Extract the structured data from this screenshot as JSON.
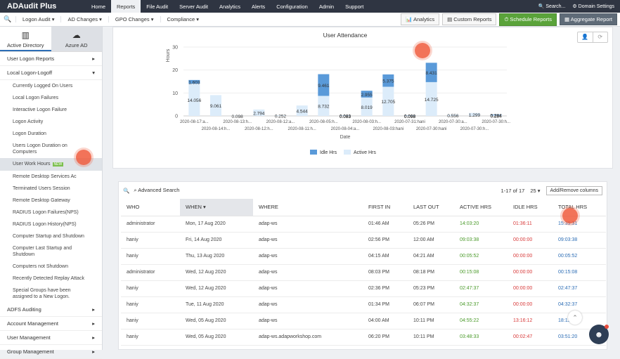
{
  "app": {
    "name": "ADAudit Plus"
  },
  "topnav": [
    {
      "label": "Home",
      "active": false
    },
    {
      "label": "Reports",
      "active": true
    },
    {
      "label": "File Audit",
      "active": false
    },
    {
      "label": "Server Audit",
      "active": false
    },
    {
      "label": "Analytics",
      "active": false
    },
    {
      "label": "Alerts",
      "active": false
    },
    {
      "label": "Configuration",
      "active": false
    },
    {
      "label": "Admin",
      "active": false
    },
    {
      "label": "Support",
      "active": false
    }
  ],
  "topright": {
    "search": "Search...",
    "domain_settings": "Domain Settings"
  },
  "subbar": {
    "menus": [
      "Logon Audit",
      "AD Changes",
      "GPO Changes",
      "Compliance"
    ],
    "analytics": "Analytics",
    "custom_reports": "Custom Reports",
    "schedule_reports": "Schedule Reports",
    "aggregate_report": "Aggregate Report"
  },
  "sidebar": {
    "tabs": [
      {
        "label": "Active Directory",
        "active": true
      },
      {
        "label": "Azure AD",
        "active": false
      }
    ],
    "sections": [
      {
        "label": "User Logon Reports",
        "arrow": "▸"
      },
      {
        "label": "Local Logon-Logoff",
        "arrow": "▾"
      }
    ],
    "items": [
      "Currently Logged On Users",
      "Local Logon Failures",
      "Interactive Logon Failure",
      "Logon Activity",
      "Logon Duration",
      "Users Logon Duration on Computers",
      "User Work Hours",
      "Remote Desktop Services Ac",
      "Terminated Users Session",
      "Remote Desktop Gateway",
      "RADIUS Logon Failures(NPS)",
      "RADIUS Logon History(NPS)",
      "Computer Startup and Shutdown",
      "Computer Last Startup and Shutdown",
      "Computers not Shutdown",
      "Recently Detected Replay Attack",
      "Special Groups have been assigned to a New Logon."
    ],
    "active_item": "User Work Hours",
    "new_badge": "NEW",
    "bottom_sections": [
      "ADFS Auditing",
      "Account Management",
      "User Management",
      "Group Management"
    ]
  },
  "chart_data": {
    "type": "bar",
    "title": "User Attendance",
    "ylabel": "Hours",
    "xlabel": "Date",
    "ylim": [
      0,
      30
    ],
    "yticks": [
      0,
      10,
      20,
      30
    ],
    "categories": [
      "2020-08-17:a...",
      "2020-08-14:h...",
      "2020-08-13:h...",
      "2020-08-12:h...",
      "2020-08-12:a...",
      "2020-08-11:h...",
      "2020-08-05:h...",
      "2020-08-04:a...",
      "2020-08-03:h...",
      "2020-08-03:hani",
      "2020-07-31:hani",
      "2020-07-30:hani",
      "2020-07-30:a...",
      "2020-07-30:h...",
      "2020-07-30:h..."
    ],
    "series": [
      {
        "name": "Active Hrs",
        "color": "#dcecfa",
        "values": [
          14.056,
          9.061,
          0.098,
          2.794,
          0.252,
          4.544,
          8.732,
          0.083,
          8.019,
          12.705,
          0.098,
          14.725,
          0.556,
          1.299,
          0.284
        ]
      },
      {
        "name": "Idle Hrs",
        "color": "#5a9ad9",
        "values": [
          1.603,
          0,
          0,
          0,
          0,
          0,
          9.461,
          0.083,
          2.955,
          5.375,
          0.098,
          8.431,
          0,
          0,
          0.284
        ]
      }
    ],
    "legend": "bottom"
  },
  "table": {
    "search_label": "Advanced Search",
    "pagination": "1-17 of 17",
    "page_size": "25",
    "add_remove_columns": "Add/Remove columns",
    "columns": [
      "WHO",
      "WHEN",
      "WHERE",
      "FIRST IN",
      "LAST OUT",
      "ACTIVE HRS",
      "IDLE HRS",
      "TOTAL HRS"
    ],
    "rows": [
      [
        "administrator",
        "Mon, 17 Aug 2020",
        "adap-ws",
        "01:46 AM",
        "05:26 PM",
        "14:03:20",
        "01:36:11",
        "15:39:31"
      ],
      [
        "haniy",
        "Fri, 14 Aug 2020",
        "adap-ws",
        "02:56 PM",
        "12:00 AM",
        "09:03:38",
        "00:00:00",
        "09:03:38"
      ],
      [
        "haniy",
        "Thu, 13 Aug 2020",
        "adap-ws",
        "04:15 AM",
        "04:21 AM",
        "00:05:52",
        "00:00:00",
        "00:05:52"
      ],
      [
        "administrator",
        "Wed, 12 Aug 2020",
        "adap-ws",
        "08:03 PM",
        "08:18 PM",
        "00:15:08",
        "00:00:00",
        "00:15:08"
      ],
      [
        "haniy",
        "Wed, 12 Aug 2020",
        "adap-ws",
        "02:36 PM",
        "05:23 PM",
        "02:47:37",
        "00:00:00",
        "02:47:37"
      ],
      [
        "haniy",
        "Tue, 11 Aug 2020",
        "adap-ws",
        "01:34 PM",
        "06:07 PM",
        "04:32:37",
        "00:00:00",
        "04:32:37"
      ],
      [
        "haniy",
        "Wed, 05 Aug 2020",
        "adap-ws",
        "04:00 AM",
        "10:11 PM",
        "04:55:22",
        "13:16:12",
        "18:11:34"
      ],
      [
        "haniy",
        "Wed, 05 Aug 2020",
        "adap-ws.adapworkshop.com",
        "06:20 PM",
        "10:11 PM",
        "03:48:33",
        "00:02:47",
        "03:51:20"
      ]
    ]
  }
}
